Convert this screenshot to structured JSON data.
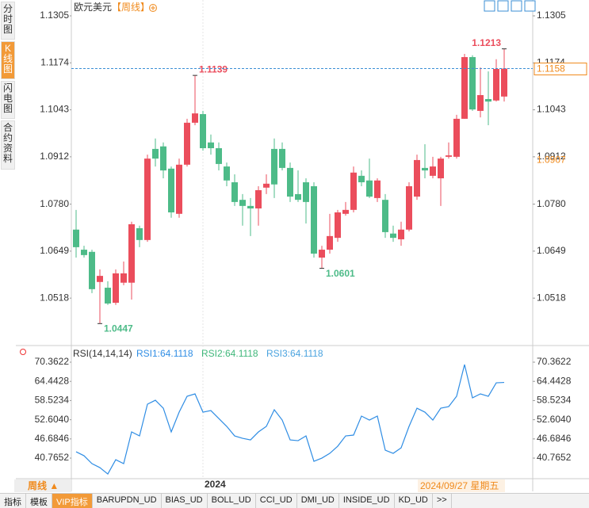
{
  "chart_data": [
    {
      "type": "candlestick",
      "symbol": "欧元美元",
      "period": "【周线】",
      "categories": [
        null,
        null,
        null,
        null,
        null,
        null,
        null,
        null,
        null,
        null,
        null,
        null,
        null,
        null,
        null,
        null,
        "2024",
        null,
        null,
        null,
        null,
        null,
        null,
        null,
        null,
        null,
        null,
        null,
        null,
        null,
        null,
        null,
        null,
        null,
        null,
        null,
        null,
        null,
        null,
        null,
        null,
        null,
        null,
        null,
        null,
        null,
        null,
        null,
        null,
        null,
        null,
        null,
        null,
        null,
        null
      ],
      "ohlc": [
        [
          1.0709,
          1.0764,
          1.0631,
          1.066
        ],
        [
          1.0653,
          1.0664,
          1.0631,
          1.0638
        ],
        [
          1.0647,
          1.0653,
          1.0532,
          1.0543
        ],
        [
          1.0563,
          1.0598,
          1.0447,
          1.058
        ],
        [
          1.0547,
          1.0565,
          1.0499,
          1.0503
        ],
        [
          1.0505,
          1.0598,
          1.0499,
          1.0587
        ],
        [
          1.0561,
          1.062,
          1.0554,
          1.0587
        ],
        [
          1.0561,
          1.0731,
          1.0514,
          1.0724
        ],
        [
          1.0713,
          1.072,
          1.066,
          1.068
        ],
        [
          1.068,
          1.0918,
          1.0675,
          1.0907
        ],
        [
          1.0934,
          1.0963,
          1.0885,
          1.0907
        ],
        [
          1.0941,
          1.0952,
          1.0852,
          1.0874
        ],
        [
          1.0879,
          1.0885,
          1.0742,
          1.0757
        ],
        [
          1.0753,
          1.0907,
          1.0742,
          1.089
        ],
        [
          1.089,
          1.1018,
          1.0885,
          1.1007
        ],
        [
          1.1007,
          1.1139,
          1.1,
          1.1033
        ],
        [
          1.1031,
          1.104,
          1.0929,
          1.0936
        ],
        [
          1.0952,
          1.0974,
          1.0918,
          1.0936
        ],
        [
          1.0936,
          1.0952,
          1.0874,
          1.0892
        ],
        [
          1.0885,
          1.0896,
          1.083,
          1.0846
        ],
        [
          1.0841,
          1.0863,
          1.0775,
          1.0786
        ],
        [
          1.0792,
          1.0808,
          1.072,
          1.0775
        ],
        [
          1.0775,
          1.0797,
          1.0691,
          1.0768
        ],
        [
          1.0768,
          1.083,
          1.072,
          1.0819
        ],
        [
          1.0826,
          1.0863,
          1.0808,
          1.0837
        ],
        [
          1.0934,
          1.0963,
          1.0797,
          1.0835
        ],
        [
          1.0934,
          1.0952,
          1.0874,
          1.0881
        ],
        [
          1.0881,
          1.0896,
          1.0786,
          1.0801
        ],
        [
          1.0808,
          1.0874,
          1.0786,
          1.0792
        ],
        [
          1.0841,
          1.0852,
          1.0726,
          1.0786
        ],
        [
          1.083,
          1.0841,
          1.0631,
          1.0642
        ],
        [
          1.0631,
          1.0664,
          1.0601,
          1.0653
        ],
        [
          1.0653,
          1.0753,
          1.0642,
          1.0691
        ],
        [
          1.0686,
          1.0764,
          1.0675,
          1.0757
        ],
        [
          1.0753,
          1.0786,
          1.0748,
          1.0764
        ],
        [
          1.0764,
          1.0885,
          1.0757,
          1.0868
        ],
        [
          1.0859,
          1.0874,
          1.083,
          1.0841
        ],
        [
          1.0846,
          1.0907,
          1.0797,
          1.0801
        ],
        [
          1.0797,
          1.0852,
          1.0786,
          1.0846
        ],
        [
          1.0792,
          1.0808,
          1.0686,
          1.0702
        ],
        [
          1.0698,
          1.072,
          1.0675,
          1.0686
        ],
        [
          1.0682,
          1.0731,
          1.0664,
          1.0709
        ],
        [
          1.0709,
          1.0841,
          1.0704,
          1.083
        ],
        [
          1.0801,
          1.0918,
          1.0792,
          1.0903
        ],
        [
          1.0881,
          1.0947,
          1.0852,
          1.0874
        ],
        [
          1.0859,
          1.0912,
          1.0852,
          1.0885
        ],
        [
          1.0852,
          1.0912,
          1.0775,
          1.0907
        ],
        [
          1.0912,
          1.0952,
          1.0907,
          1.0916
        ],
        [
          1.0912,
          1.1029,
          1.0907,
          1.1018
        ],
        [
          1.1018,
          1.1199,
          1.1018,
          1.119
        ],
        [
          1.119,
          1.1195,
          1.104,
          1.1044
        ],
        [
          1.104,
          1.1161,
          1.1022,
          1.1084
        ],
        [
          1.1073,
          1.115,
          1.1,
          1.1066
        ],
        [
          1.1069,
          1.1184,
          1.1066,
          1.1157
        ],
        [
          1.108,
          1.1213,
          1.1066,
          1.1158
        ]
      ],
      "up_color": "#eb4d5c",
      "down_color": "#4dbb88",
      "ylim": [
        1.0388,
        1.1305
      ],
      "yticks": [
        1.1305,
        1.1174,
        1.1043,
        1.0912,
        {
          "value": 1.078,
          "label": "1.0780"
        },
        1.0649,
        1.0518
      ],
      "current_price": 1.1158,
      "reference_price": 1.0907,
      "high_labels": [
        1.1213,
        1.1139
      ],
      "low_labels": [
        1.0601,
        1.0447
      ],
      "grid": false
    },
    {
      "type": "line",
      "title": "RSI(14,14,14)",
      "series": [
        {
          "name": "RSI1:64.1118",
          "color": "#2f8de4",
          "values": [
            42.72,
            41.5,
            39.05,
            37.83,
            35.87,
            40.27,
            39.05,
            48.84,
            47.61,
            57.4,
            58.62,
            56.17,
            48.84,
            54.95,
            59.84,
            60.58,
            54.95,
            55.44,
            52.99,
            50.55,
            47.61,
            46.88,
            46.39,
            48.84,
            50.55,
            55.68,
            52.5,
            46.39,
            46.14,
            47.61,
            39.78,
            40.76,
            42.23,
            44.43,
            47.61,
            47.86,
            53.73,
            52.5,
            53.73,
            43.21,
            42.23,
            43.94,
            50.55,
            56.17,
            54.95,
            52.5,
            56.17,
            56.66,
            59.84,
            69.63,
            59.35,
            60.58,
            59.84,
            64.0,
            64.1118
          ]
        },
        {
          "name": "RSI2:64.1118",
          "color": "#3fb77a"
        },
        {
          "name": "RSI3:64.1118",
          "color": "#4aa3df"
        }
      ],
      "ylim": [
        34,
        73.3
      ],
      "yticks": [
        70.3622,
        64.4428,
        58.5234,
        {
          "value": 52.604,
          "label": "52.6040"
        },
        46.6846,
        40.7652
      ],
      "grid": false
    }
  ],
  "ui": {
    "sidebar_tabs": [
      "分时图",
      "K线图",
      "闪电图",
      "合约资料"
    ],
    "period_button": "周线 ▲",
    "cursor_date": "2024/09/27 星期五",
    "bottom_tabs": [
      "指标",
      "模板",
      "VIP指标",
      "BARUPDN_UD",
      "BIAS_UD",
      "BOLL_UD",
      "CCI_UD",
      "DMI_UD",
      "INSIDE_UD",
      "KD_UD",
      ">>"
    ]
  }
}
